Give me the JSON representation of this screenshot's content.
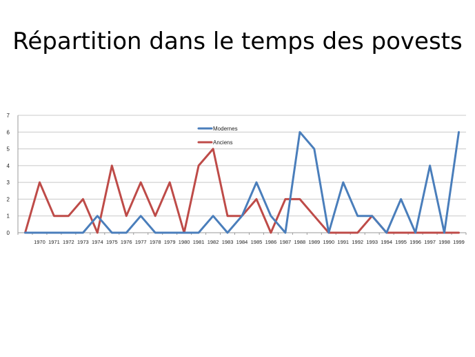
{
  "slide": {
    "title": "Répartition dans le temps des povests"
  },
  "chart_data": {
    "type": "line",
    "title": "Répartition dans le temps des povests",
    "xlabel": "",
    "ylabel": "",
    "ylim": [
      0,
      7
    ],
    "yticks": [
      0,
      1,
      2,
      3,
      4,
      5,
      6,
      7
    ],
    "grid": true,
    "legend_position": "top-center",
    "x": [
      "",
      "1970",
      "1971",
      "1972",
      "1973",
      "1974",
      "1975",
      "1976",
      "1977",
      "1978",
      "1979",
      "1980",
      "1981",
      "1982",
      "1983",
      "1984",
      "1985",
      "1986",
      "1987",
      "1988",
      "1989",
      "1990",
      "1991",
      "1992",
      "1993",
      "1994",
      "1995",
      "1996",
      "1997",
      "1998",
      "1999"
    ],
    "series": [
      {
        "name": "Modernes",
        "color": "#4a7ebb",
        "values": [
          0,
          0,
          0,
          0,
          0,
          1,
          0,
          0,
          1,
          0,
          0,
          0,
          0,
          1,
          0,
          1,
          3,
          1,
          0,
          6,
          5,
          0,
          3,
          1,
          1,
          0,
          2,
          0,
          4,
          0,
          6
        ]
      },
      {
        "name": "Anciens",
        "color": "#be4b48",
        "values": [
          0,
          3,
          1,
          1,
          2,
          0,
          4,
          1,
          3,
          1,
          3,
          0,
          4,
          5,
          1,
          1,
          2,
          0,
          2,
          2,
          1,
          0,
          0,
          0,
          1,
          0,
          0,
          0,
          0,
          0,
          0
        ]
      }
    ]
  }
}
